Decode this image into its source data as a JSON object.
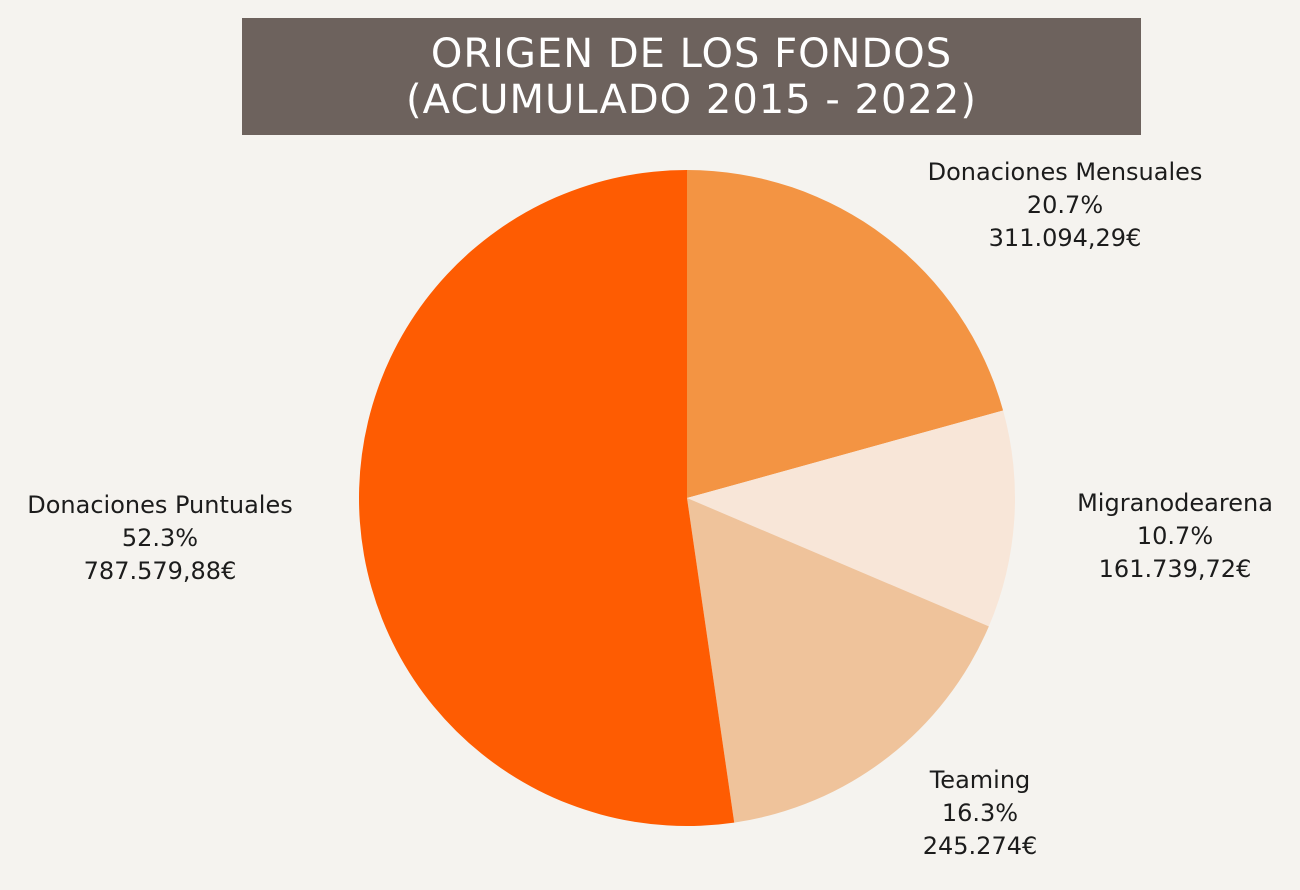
{
  "title": {
    "line1": "ORIGEN DE LOS FONDOS",
    "line2": "(ACUMULADO 2015 - 2022)"
  },
  "chart_data": {
    "type": "pie",
    "title": "ORIGEN DE LOS FONDOS (ACUMULADO 2015 - 2022)",
    "start": "12 o'clock",
    "direction": "clockwise",
    "slices": [
      {
        "name": "Donaciones Mensuales",
        "percent": 20.7,
        "percent_label": "20.7%",
        "amount_label": "311.094,29€",
        "color": "#f39443"
      },
      {
        "name": "Migranodearena",
        "percent": 10.7,
        "percent_label": "10.7%",
        "amount_label": "161.739,72€",
        "color": "#f8e6d8"
      },
      {
        "name": "Teaming",
        "percent": 16.3,
        "percent_label": "16.3%",
        "amount_label": "245.274€",
        "color": "#efc39b"
      },
      {
        "name": "Donaciones Puntuales",
        "percent": 52.3,
        "percent_label": "52.3%",
        "amount_label": "787.579,88€",
        "color": "#fe5c02"
      }
    ]
  }
}
